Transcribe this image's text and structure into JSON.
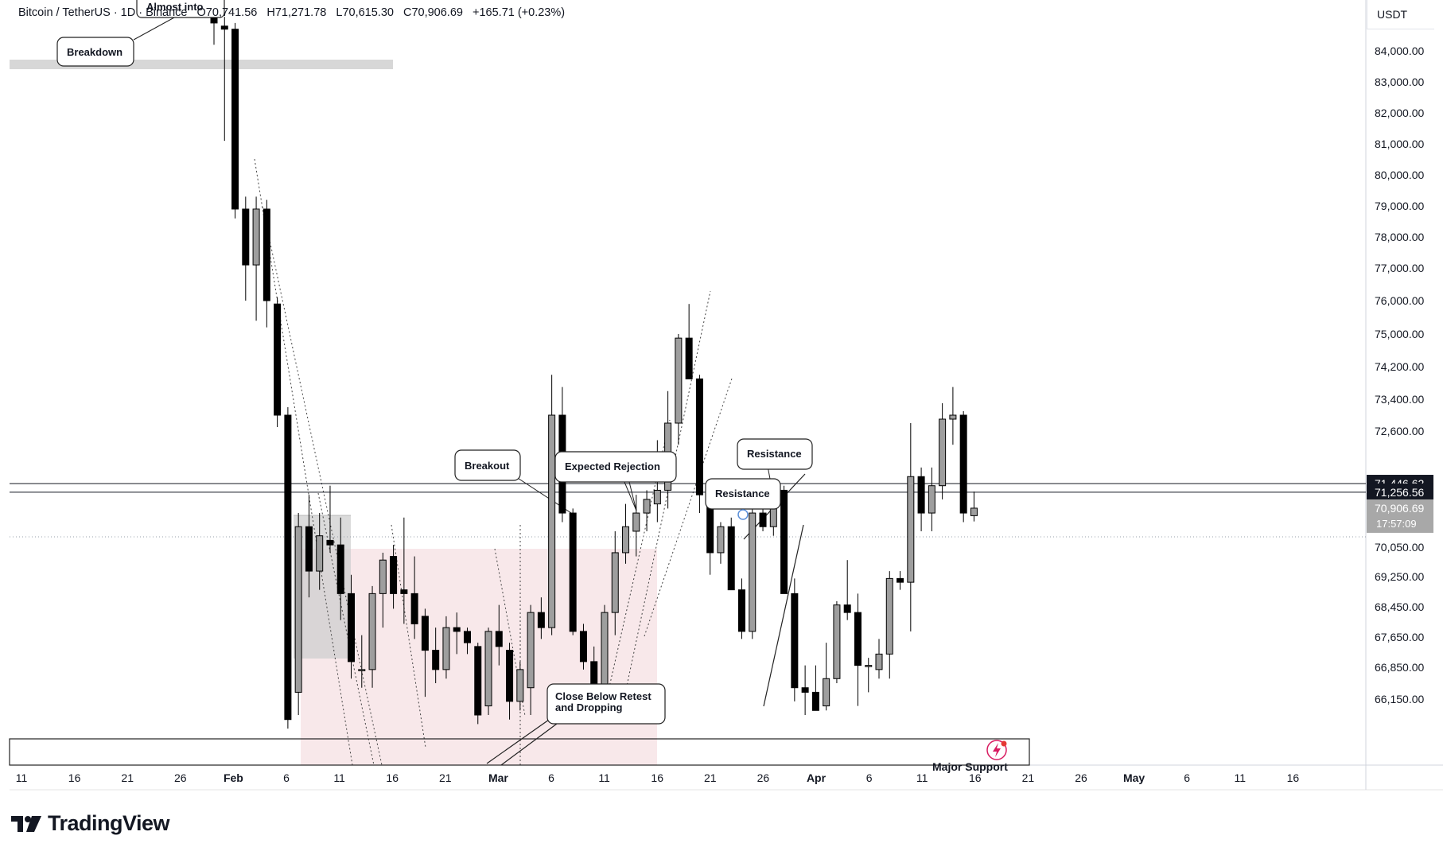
{
  "header": {
    "symbol": "Bitcoin / TetherUS · 1D · Binance",
    "open": "O70,741.56",
    "high": "H71,271.78",
    "low": "L70,615.30",
    "close": "C70,906.69",
    "change": "+165.71 (+0.23%)"
  },
  "currency_label": "USDT",
  "brand": {
    "name": "TradingView"
  },
  "price_badges": {
    "line_high": "71,446.62",
    "line_low": "71,256.56",
    "last_price": "70,906.69",
    "countdown": "17:57:09"
  },
  "colors": {
    "candle": "#000000",
    "candle_up_fill": "#9e9e9e",
    "zone_pink": "#f8e8ea",
    "zone_grey": "#cfcfcf",
    "badge_dark": "#131722",
    "badge_grey": "#a8a8a8",
    "support_icon": "#d81b60"
  },
  "chart_data": {
    "type": "candlestick",
    "symbol": "Bitcoin / TetherUS",
    "timeframe": "1D",
    "exchange": "Binance",
    "y_ticks": [
      "84,000.00",
      "83,000.00",
      "82,000.00",
      "81,000.00",
      "80,000.00",
      "79,000.00",
      "78,000.00",
      "77,000.00",
      "76,000.00",
      "75,000.00",
      "74,200.00",
      "73,400.00",
      "72,600.00",
      "70,050.00",
      "69,250.00",
      "68,450.00",
      "67,650.00",
      "66,850.00",
      "66,150.00"
    ],
    "x_ticks": [
      "11",
      "16",
      "21",
      "26",
      "Feb",
      "6",
      "11",
      "16",
      "21",
      "Mar",
      "6",
      "11",
      "16",
      "21",
      "26",
      "Apr",
      "6",
      "11",
      "16",
      "21",
      "26",
      "May",
      "6",
      "11",
      "16"
    ],
    "horizontal_lines": [
      71446.62,
      71256.56
    ],
    "candles": [
      {
        "o": 85200,
        "h": 85900,
        "l": 84200,
        "c": 84900
      },
      {
        "o": 84800,
        "h": 85100,
        "l": 81100,
        "c": 84700
      },
      {
        "o": 84700,
        "h": 84900,
        "l": 78600,
        "c": 78900
      },
      {
        "o": 78900,
        "h": 79300,
        "l": 76000,
        "c": 77100
      },
      {
        "o": 77100,
        "h": 79300,
        "l": 75400,
        "c": 78900
      },
      {
        "o": 78900,
        "h": 79200,
        "l": 75200,
        "c": 76000
      },
      {
        "o": 75900,
        "h": 76100,
        "l": 72700,
        "c": 73000
      },
      {
        "o": 73000,
        "h": 73200,
        "l": 65500,
        "c": 65700
      },
      {
        "o": 66300,
        "h": 70800,
        "l": 65800,
        "c": 70500
      },
      {
        "o": 70500,
        "h": 71200,
        "l": 68700,
        "c": 69400
      },
      {
        "o": 69400,
        "h": 70800,
        "l": 68900,
        "c": 70300
      },
      {
        "o": 70200,
        "h": 71400,
        "l": 69900,
        "c": 70100
      },
      {
        "o": 70100,
        "h": 70700,
        "l": 68100,
        "c": 68800
      },
      {
        "o": 68800,
        "h": 69300,
        "l": 66600,
        "c": 67000
      },
      {
        "o": 66800,
        "h": 67700,
        "l": 66400,
        "c": 66800
      },
      {
        "o": 66800,
        "h": 69000,
        "l": 66400,
        "c": 68800
      },
      {
        "o": 68800,
        "h": 69900,
        "l": 67900,
        "c": 69700
      },
      {
        "o": 69800,
        "h": 70100,
        "l": 68400,
        "c": 68800
      },
      {
        "o": 68900,
        "h": 70700,
        "l": 68000,
        "c": 68800
      },
      {
        "o": 68800,
        "h": 69800,
        "l": 67600,
        "c": 68000
      },
      {
        "o": 68200,
        "h": 68400,
        "l": 66200,
        "c": 67300
      },
      {
        "o": 67300,
        "h": 67900,
        "l": 66500,
        "c": 66800
      },
      {
        "o": 66800,
        "h": 68200,
        "l": 66600,
        "c": 67900
      },
      {
        "o": 67900,
        "h": 68300,
        "l": 67200,
        "c": 67800
      },
      {
        "o": 67800,
        "h": 67900,
        "l": 67200,
        "c": 67500
      },
      {
        "o": 67400,
        "h": 67500,
        "l": 65600,
        "c": 65800
      },
      {
        "o": 66000,
        "h": 67900,
        "l": 65800,
        "c": 67800
      },
      {
        "o": 67800,
        "h": 68500,
        "l": 66900,
        "c": 67400
      },
      {
        "o": 67300,
        "h": 67500,
        "l": 65700,
        "c": 66100
      },
      {
        "o": 66100,
        "h": 67000,
        "l": 65900,
        "c": 66800
      },
      {
        "o": 66400,
        "h": 68500,
        "l": 65800,
        "c": 68300
      },
      {
        "o": 68300,
        "h": 68700,
        "l": 67600,
        "c": 67900
      },
      {
        "o": 67900,
        "h": 74000,
        "l": 67700,
        "c": 73000
      },
      {
        "o": 73000,
        "h": 73700,
        "l": 70600,
        "c": 70800
      },
      {
        "o": 70800,
        "h": 70900,
        "l": 67700,
        "c": 67800
      },
      {
        "o": 67800,
        "h": 68000,
        "l": 66800,
        "c": 67000
      },
      {
        "o": 67000,
        "h": 67400,
        "l": 66000,
        "c": 66200
      },
      {
        "o": 66200,
        "h": 68500,
        "l": 66000,
        "c": 68300
      },
      {
        "o": 68300,
        "h": 70400,
        "l": 67700,
        "c": 69900
      },
      {
        "o": 69900,
        "h": 71000,
        "l": 69600,
        "c": 70500
      },
      {
        "o": 70400,
        "h": 71200,
        "l": 69800,
        "c": 70800
      },
      {
        "o": 70800,
        "h": 71300,
        "l": 70400,
        "c": 71100
      },
      {
        "o": 71000,
        "h": 72400,
        "l": 70600,
        "c": 71300
      },
      {
        "o": 71300,
        "h": 73600,
        "l": 70900,
        "c": 72800
      },
      {
        "o": 72800,
        "h": 75000,
        "l": 72300,
        "c": 74900
      },
      {
        "o": 74900,
        "h": 75900,
        "l": 73900,
        "c": 73900
      },
      {
        "o": 73900,
        "h": 74000,
        "l": 70800,
        "c": 71200
      },
      {
        "o": 71200,
        "h": 71400,
        "l": 69300,
        "c": 69900
      },
      {
        "o": 69900,
        "h": 70600,
        "l": 69600,
        "c": 70500
      },
      {
        "o": 70500,
        "h": 70700,
        "l": 68900,
        "c": 68900
      },
      {
        "o": 68900,
        "h": 69200,
        "l": 67600,
        "c": 67800
      },
      {
        "o": 67800,
        "h": 71000,
        "l": 67600,
        "c": 70800
      },
      {
        "o": 70800,
        "h": 71100,
        "l": 70400,
        "c": 70500
      },
      {
        "o": 70500,
        "h": 71300,
        "l": 70300,
        "c": 71300
      },
      {
        "o": 71300,
        "h": 71400,
        "l": 68800,
        "c": 68800
      },
      {
        "o": 68800,
        "h": 69200,
        "l": 66100,
        "c": 66400
      },
      {
        "o": 66400,
        "h": 66900,
        "l": 65800,
        "c": 66300
      },
      {
        "o": 66300,
        "h": 66900,
        "l": 65900,
        "c": 65900
      },
      {
        "o": 66000,
        "h": 67500,
        "l": 65900,
        "c": 66600
      },
      {
        "o": 66600,
        "h": 68600,
        "l": 66500,
        "c": 68500
      },
      {
        "o": 68500,
        "h": 69700,
        "l": 68100,
        "c": 68300
      },
      {
        "o": 68300,
        "h": 68800,
        "l": 66000,
        "c": 66900
      },
      {
        "o": 66900,
        "h": 67100,
        "l": 66300,
        "c": 66900
      },
      {
        "o": 66800,
        "h": 67600,
        "l": 66600,
        "c": 67200
      },
      {
        "o": 67200,
        "h": 69400,
        "l": 66600,
        "c": 69200
      },
      {
        "o": 69200,
        "h": 69400,
        "l": 68900,
        "c": 69100
      },
      {
        "o": 69100,
        "h": 72800,
        "l": 67800,
        "c": 71600
      },
      {
        "o": 71600,
        "h": 71800,
        "l": 70400,
        "c": 70800
      },
      {
        "o": 70800,
        "h": 71800,
        "l": 70400,
        "c": 71400
      },
      {
        "o": 71400,
        "h": 73300,
        "l": 71100,
        "c": 72900
      },
      {
        "o": 72900,
        "h": 73700,
        "l": 72300,
        "c": 73000
      },
      {
        "o": 73000,
        "h": 73100,
        "l": 70600,
        "c": 70800
      },
      {
        "o": 70741.56,
        "h": 71271.78,
        "l": 70615.3,
        "c": 70906.69
      }
    ],
    "annotations": [
      "Almost into",
      "Breakdown",
      "Breakout",
      "Expected Rejection",
      "Resistance",
      "Resistance",
      "Close Below Retest and Dropping",
      "Major Support"
    ]
  }
}
